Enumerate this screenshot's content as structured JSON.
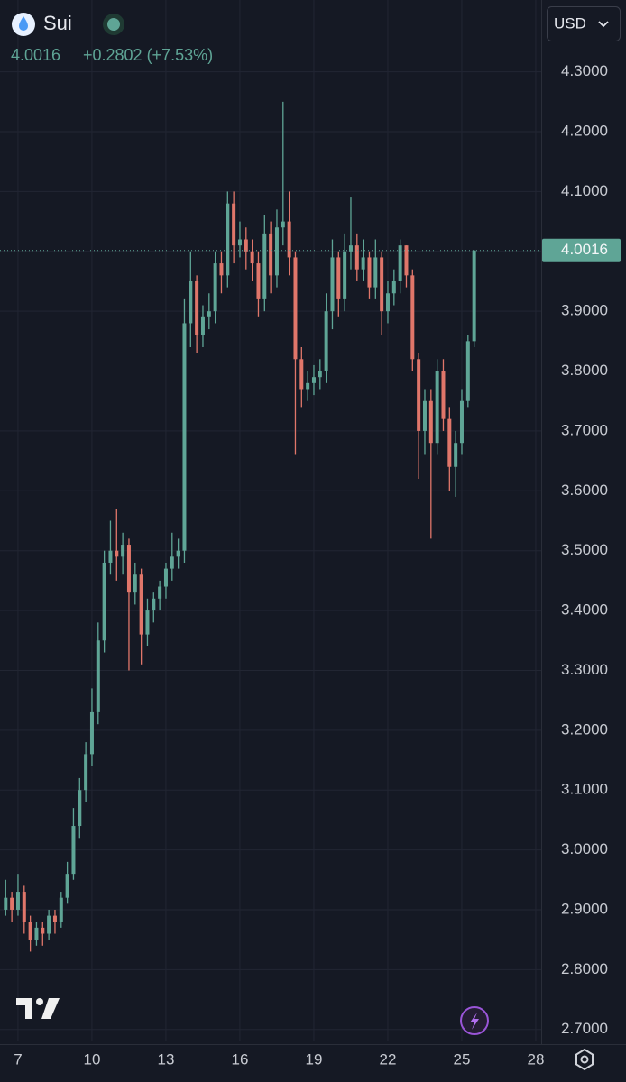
{
  "header": {
    "symbol": "Sui",
    "price": "4.0016",
    "change": "+0.2802 (+7.53%)",
    "currency": "USD"
  },
  "chart_data": {
    "type": "candlestick",
    "up_color": "#5fa596",
    "down_color": "#e0766a",
    "last_price": 4.0016,
    "xlim": [
      6.27,
      28.22
    ],
    "xticks": [
      7,
      10,
      13,
      16,
      19,
      22,
      25,
      28
    ],
    "ylim": [
      2.68,
      4.42
    ],
    "yticks": [
      {
        "value": 2.7,
        "label": "2.7000"
      },
      {
        "value": 2.8,
        "label": "2.8000"
      },
      {
        "value": 2.9,
        "label": "2.9000"
      },
      {
        "value": 3.0,
        "label": "3.0000"
      },
      {
        "value": 3.1,
        "label": "3.1000"
      },
      {
        "value": 3.2,
        "label": "3.2000"
      },
      {
        "value": 3.3,
        "label": "3.3000"
      },
      {
        "value": 3.4,
        "label": "3.4000"
      },
      {
        "value": 3.5,
        "label": "3.5000"
      },
      {
        "value": 3.6,
        "label": "3.6000"
      },
      {
        "value": 3.7,
        "label": "3.7000"
      },
      {
        "value": 3.8,
        "label": "3.8000"
      },
      {
        "value": 3.9,
        "label": "3.9000"
      },
      {
        "value": 4.0,
        "label": "4.0000"
      },
      {
        "value": 4.1,
        "label": "4.1000"
      },
      {
        "value": 4.2,
        "label": "4.2000"
      },
      {
        "value": 4.3,
        "label": "4.3000"
      }
    ],
    "grid": true,
    "x": [
      6.5,
      6.75,
      7,
      7.25,
      7.5,
      7.75,
      8,
      8.25,
      8.5,
      8.75,
      9,
      9.25,
      9.5,
      9.75,
      10,
      10.25,
      10.5,
      10.75,
      11,
      11.25,
      11.5,
      11.75,
      12,
      12.25,
      12.5,
      12.75,
      13,
      13.25,
      13.5,
      13.75,
      14,
      14.25,
      14.5,
      14.75,
      15,
      15.25,
      15.5,
      15.75,
      16,
      16.25,
      16.5,
      16.75,
      17,
      17.25,
      17.5,
      17.75,
      18,
      18.25,
      18.5,
      18.75,
      19,
      19.25,
      19.5,
      19.75,
      20,
      20.25,
      20.5,
      20.75,
      21,
      21.25,
      21.5,
      21.75,
      22,
      22.25,
      22.5,
      22.75,
      23,
      23.25,
      23.5,
      23.75,
      24,
      24.25,
      24.5,
      24.75,
      25,
      25.25,
      25.5
    ],
    "open": [
      2.9,
      2.92,
      2.9,
      2.93,
      2.88,
      2.85,
      2.87,
      2.86,
      2.89,
      2.88,
      2.92,
      2.96,
      3.04,
      3.1,
      3.16,
      3.23,
      3.35,
      3.48,
      3.5,
      3.49,
      3.51,
      3.43,
      3.46,
      3.36,
      3.4,
      3.42,
      3.44,
      3.47,
      3.49,
      3.5,
      3.88,
      3.95,
      3.86,
      3.89,
      3.9,
      3.98,
      3.96,
      4.08,
      4.01,
      4.02,
      4.0,
      3.98,
      3.92,
      4.03,
      3.96,
      4.04,
      4.05,
      3.99,
      3.82,
      3.77,
      3.78,
      3.79,
      3.8,
      3.9,
      3.99,
      3.92,
      4.0,
      4.01,
      3.97,
      3.99,
      3.94,
      3.99,
      3.9,
      3.93,
      3.95,
      4.01,
      3.96,
      3.82,
      3.7,
      3.75,
      3.68,
      3.8,
      3.72,
      3.64,
      3.68,
      3.75,
      3.85
    ],
    "high": [
      2.95,
      2.93,
      2.96,
      2.94,
      2.89,
      2.88,
      2.88,
      2.9,
      2.9,
      2.93,
      2.98,
      3.07,
      3.12,
      3.18,
      3.27,
      3.38,
      3.5,
      3.55,
      3.57,
      3.53,
      3.52,
      3.48,
      3.47,
      3.42,
      3.43,
      3.45,
      3.48,
      3.53,
      3.52,
      3.92,
      4.0,
      3.96,
      3.91,
      3.93,
      4.0,
      4.0,
      4.1,
      4.1,
      4.05,
      4.04,
      4.02,
      4.0,
      4.06,
      4.05,
      4.07,
      4.25,
      4.1,
      4.0,
      3.84,
      3.8,
      3.81,
      3.82,
      3.93,
      4.02,
      4.0,
      4.03,
      4.09,
      4.03,
      4.02,
      4.0,
      4.02,
      4.0,
      3.95,
      3.97,
      4.02,
      4.01,
      3.97,
      3.83,
      3.77,
      3.77,
      3.82,
      3.82,
      3.74,
      3.7,
      3.77,
      3.86,
      4.0016
    ],
    "low": [
      2.89,
      2.88,
      2.89,
      2.86,
      2.83,
      2.84,
      2.84,
      2.85,
      2.86,
      2.87,
      2.91,
      2.95,
      3.02,
      3.08,
      3.14,
      3.21,
      3.33,
      3.46,
      3.45,
      3.46,
      3.3,
      3.41,
      3.31,
      3.34,
      3.38,
      3.4,
      3.42,
      3.45,
      3.47,
      3.48,
      3.84,
      3.83,
      3.84,
      3.87,
      3.88,
      3.93,
      3.94,
      3.98,
      3.99,
      3.97,
      3.95,
      3.89,
      3.9,
      3.93,
      3.94,
      4.01,
      3.96,
      3.66,
      3.74,
      3.75,
      3.76,
      3.77,
      3.78,
      3.87,
      3.89,
      3.9,
      3.97,
      3.95,
      3.95,
      3.92,
      3.92,
      3.86,
      3.88,
      3.91,
      3.93,
      3.94,
      3.8,
      3.62,
      3.66,
      3.52,
      3.66,
      3.7,
      3.6,
      3.59,
      3.66,
      3.74,
      3.84
    ],
    "close": [
      2.92,
      2.9,
      2.93,
      2.88,
      2.85,
      2.87,
      2.86,
      2.89,
      2.88,
      2.92,
      2.96,
      3.04,
      3.1,
      3.16,
      3.23,
      3.35,
      3.48,
      3.5,
      3.49,
      3.51,
      3.43,
      3.46,
      3.36,
      3.4,
      3.42,
      3.44,
      3.47,
      3.49,
      3.5,
      3.88,
      3.95,
      3.86,
      3.89,
      3.9,
      3.98,
      3.96,
      4.08,
      4.01,
      4.02,
      4.0,
      3.98,
      3.92,
      4.03,
      3.96,
      4.04,
      4.05,
      3.99,
      3.82,
      3.77,
      3.78,
      3.79,
      3.8,
      3.9,
      3.99,
      3.92,
      4.0,
      4.01,
      3.97,
      3.99,
      3.94,
      3.99,
      3.9,
      3.93,
      3.95,
      4.01,
      3.96,
      3.82,
      3.7,
      3.75,
      3.68,
      3.8,
      3.72,
      3.64,
      3.68,
      3.75,
      3.85,
      4.0016
    ]
  }
}
